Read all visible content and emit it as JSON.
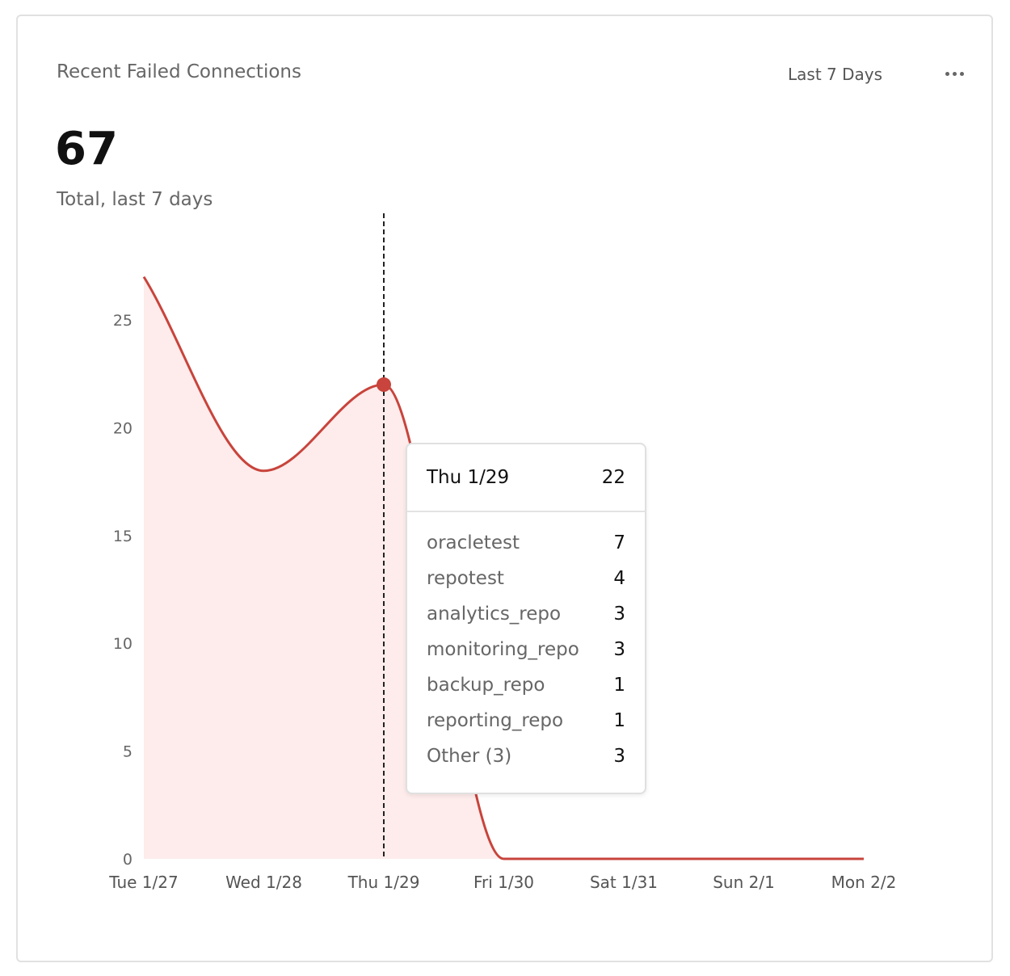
{
  "card": {
    "title": "Recent Failed Connections",
    "range_label": "Last 7 Days",
    "more_icon": "ellipsis-icon",
    "total": "67",
    "total_caption": "Total, last 7 days"
  },
  "colors": {
    "line": "#c8443c",
    "area": "#fdeceb",
    "hover_line": "#222222"
  },
  "chart_data": {
    "type": "area",
    "categories": [
      "Tue 1/27",
      "Wed 1/28",
      "Thu 1/29",
      "Fri 1/30",
      "Sat 1/31",
      "Sun 2/1",
      "Mon 2/2"
    ],
    "series": [
      {
        "values": [
          27,
          18,
          22,
          0,
          0,
          0,
          0
        ]
      }
    ],
    "yticks": [
      0,
      5,
      10,
      15,
      20,
      25
    ],
    "ylim": [
      0,
      25
    ],
    "grid": false,
    "highlight_index": 2
  },
  "tooltip": {
    "date": "Thu 1/29",
    "total": "22",
    "rows": [
      {
        "name": "oracletest",
        "value": "7"
      },
      {
        "name": "repotest",
        "value": "4"
      },
      {
        "name": "analytics_repo",
        "value": "3"
      },
      {
        "name": "monitoring_repo",
        "value": "3"
      },
      {
        "name": "backup_repo",
        "value": "1"
      },
      {
        "name": "reporting_repo",
        "value": "1"
      },
      {
        "name": "Other (3)",
        "value": "3"
      }
    ]
  }
}
